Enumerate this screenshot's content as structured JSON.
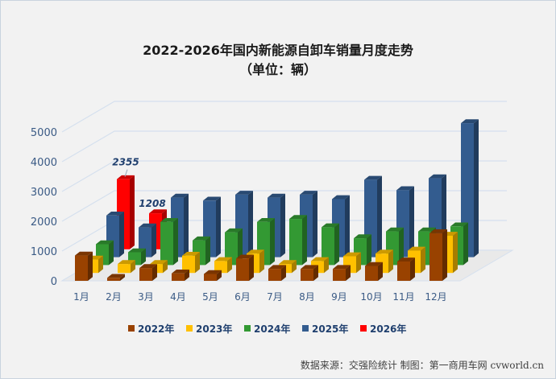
{
  "chart_data": {
    "type": "bar",
    "title": "2022-2026年国内新能源自卸车销量月度走势",
    "subtitle": "（单位：辆）",
    "xlabel": "",
    "ylabel": "",
    "ylim": [
      0,
      5000
    ],
    "yticks": [
      "0",
      "1000",
      "2000",
      "3000",
      "4000",
      "5000"
    ],
    "categories": [
      "1月",
      "2月",
      "3月",
      "4月",
      "5月",
      "6月",
      "7月",
      "8月",
      "9月",
      "10月",
      "11月",
      "12月"
    ],
    "grid": true,
    "legend": "bottom",
    "style": "3D clustered column, series in depth",
    "series": [
      {
        "name": "2022年",
        "color": "#994200",
        "values": [
          850,
          100,
          430,
          250,
          230,
          750,
          400,
          400,
          400,
          500,
          650,
          1600
        ]
      },
      {
        "name": "2023年",
        "color": "#ffc000",
        "values": [
          450,
          300,
          300,
          580,
          400,
          650,
          300,
          400,
          560,
          650,
          750,
          1250
        ]
      },
      {
        "name": "2024年",
        "color": "#339933",
        "values": [
          700,
          430,
          1450,
          830,
          1100,
          1450,
          1550,
          1270,
          900,
          1130,
          1130,
          1300
        ]
      },
      {
        "name": "2025年",
        "color": "#335c8f",
        "values": [
          1400,
          1000,
          2000,
          1900,
          2100,
          2000,
          2100,
          1950,
          2600,
          2250,
          2650,
          4500
        ]
      },
      {
        "name": "2026年",
        "color": "#ff0000",
        "values": [
          2355,
          1208,
          null,
          null,
          null,
          null,
          null,
          null,
          null,
          null,
          null,
          null
        ]
      }
    ],
    "data_labels": [
      {
        "series": "2026年",
        "category": "1月",
        "text": "2355"
      },
      {
        "series": "2026年",
        "category": "2月",
        "text": "1208"
      }
    ]
  },
  "footer": "数据来源：交强险统计 制图：第一商用车网 cvworld.cn"
}
